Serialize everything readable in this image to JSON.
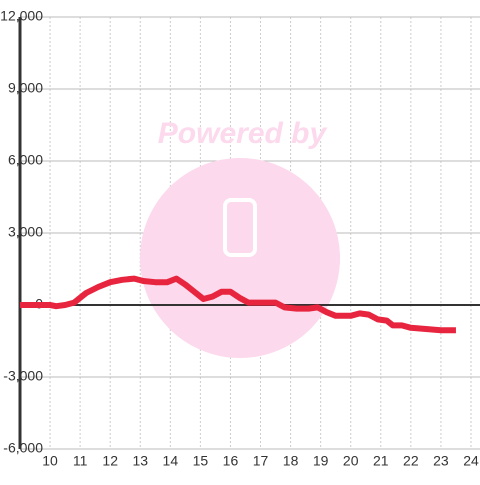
{
  "chart_data": {
    "type": "line",
    "watermark": "Powered by",
    "x": [
      9.0,
      10.0,
      10.2,
      10.5,
      10.8,
      11.2,
      11.6,
      12.0,
      12.4,
      12.8,
      13.1,
      13.5,
      13.9,
      14.2,
      14.5,
      14.8,
      15.1,
      15.4,
      15.7,
      16.0,
      16.3,
      16.6,
      17.0,
      17.5,
      17.8,
      18.2,
      18.6,
      18.9,
      19.2,
      19.5,
      20.0,
      20.3,
      20.6,
      20.9,
      21.2,
      21.4,
      21.7,
      22.0,
      22.5,
      23.0,
      23.5
    ],
    "series": [
      {
        "color": "#e8253f",
        "values": [
          0,
          0,
          -50,
          0,
          100,
          500,
          750,
          950,
          1050,
          1100,
          1000,
          950,
          950,
          1100,
          850,
          550,
          250,
          350,
          550,
          550,
          300,
          100,
          100,
          100,
          -100,
          -150,
          -150,
          -100,
          -300,
          -450,
          -450,
          -350,
          -400,
          -600,
          -650,
          -850,
          -850,
          -950,
          -1000,
          -1050,
          -1050
        ]
      }
    ],
    "xlim": [
      9,
      24.3
    ],
    "xticks": [
      10,
      11,
      12,
      13,
      14,
      15,
      16,
      17,
      18,
      19,
      20,
      21,
      22,
      23,
      24
    ],
    "ylim": [
      -6000,
      12000
    ],
    "yticks": [
      {
        "value": -6000,
        "label": "-6,000"
      },
      {
        "value": -3000,
        "label": "-3,000"
      },
      0,
      {
        "value": 3000,
        "label": "3,000"
      },
      {
        "value": 6000,
        "label": "6,000"
      },
      {
        "value": 9000,
        "label": "9,000"
      },
      {
        "value": 12000,
        "label": "12,000"
      }
    ],
    "grid": true
  }
}
